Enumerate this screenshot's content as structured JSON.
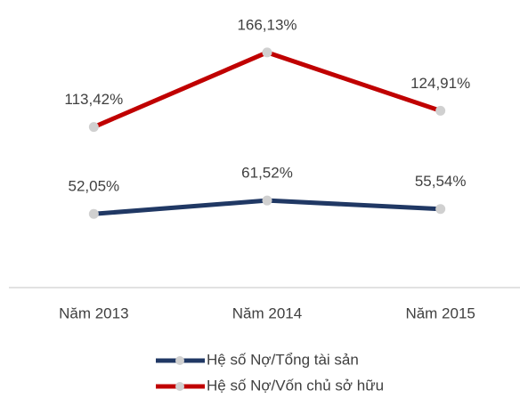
{
  "chart_data": {
    "type": "line",
    "categories": [
      "Năm 2013",
      "Năm 2014",
      "Năm 2015"
    ],
    "series": [
      {
        "name": "Hệ số Nợ/Tổng tài sản",
        "color": "#203864",
        "values": [
          52.05,
          61.52,
          55.54
        ],
        "value_labels": [
          "52,05%",
          "61,52%",
          "55,54%"
        ]
      },
      {
        "name": "Hệ số Nợ/Vốn chủ sở hữu",
        "color": "#c00000",
        "values": [
          113.42,
          166.13,
          124.91
        ],
        "value_labels": [
          "113,42%",
          "166,13%",
          "124,91%"
        ]
      }
    ],
    "ylim": [
      0,
      200
    ],
    "marker_color": "#d0d0d0"
  }
}
